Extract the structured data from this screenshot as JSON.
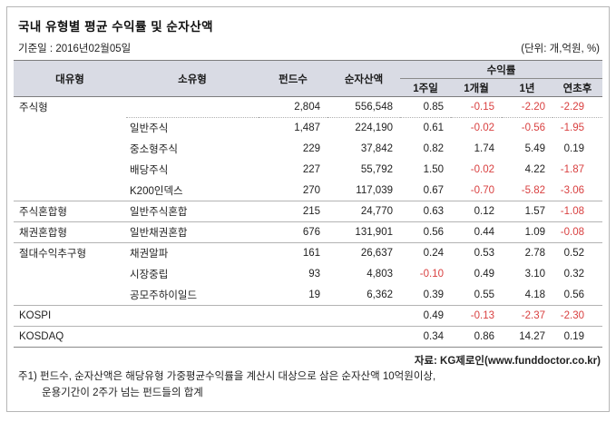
{
  "header": {
    "title": "국내 유형별 평균 수익률 및 순자산액",
    "base_date": "기준일 : 2016년02월05일",
    "unit_note": "(단위: 개,억원, %)"
  },
  "table": {
    "columns": {
      "major_type": "대유형",
      "sub_type": "소유형",
      "fund_count": "펀드수",
      "net_assets": "순자산액",
      "returns_group": "수익률",
      "returns": [
        "1주일",
        "1개월",
        "1년",
        "연초후"
      ]
    },
    "rows": [
      {
        "major": "주식형",
        "sub": "",
        "funds": "2,804",
        "assets": "556,548",
        "returns": [
          "0.85",
          "-0.15",
          "-2.20",
          "-2.29"
        ],
        "group_start": false,
        "partial_sep_bottom": true
      },
      {
        "major": "",
        "sub": "일반주식",
        "funds": "1,487",
        "assets": "224,190",
        "returns": [
          "0.61",
          "-0.02",
          "-0.56",
          "-1.95"
        ],
        "group_start": false,
        "partial_sep_bottom": false
      },
      {
        "major": "",
        "sub": "중소형주식",
        "funds": "229",
        "assets": "37,842",
        "returns": [
          "0.82",
          "1.74",
          "5.49",
          "0.19"
        ],
        "group_start": false,
        "partial_sep_bottom": false
      },
      {
        "major": "",
        "sub": "배당주식",
        "funds": "227",
        "assets": "55,792",
        "returns": [
          "1.50",
          "-0.02",
          "4.22",
          "-1.87"
        ],
        "group_start": false,
        "partial_sep_bottom": false
      },
      {
        "major": "",
        "sub": "K200인덱스",
        "funds": "270",
        "assets": "117,039",
        "returns": [
          "0.67",
          "-0.70",
          "-5.82",
          "-3.06"
        ],
        "group_start": false,
        "partial_sep_bottom": false
      },
      {
        "major": "주식혼합형",
        "sub": "일반주식혼합",
        "funds": "215",
        "assets": "24,770",
        "returns": [
          "0.63",
          "0.12",
          "1.57",
          "-1.08"
        ],
        "group_start": true,
        "partial_sep_bottom": false
      },
      {
        "major": "채권혼합형",
        "sub": "일반채권혼합",
        "funds": "676",
        "assets": "131,901",
        "returns": [
          "0.56",
          "0.44",
          "1.09",
          "-0.08"
        ],
        "group_start": true,
        "partial_sep_bottom": false
      },
      {
        "major": "절대수익추구형",
        "sub": "채권알파",
        "funds": "161",
        "assets": "26,637",
        "returns": [
          "0.24",
          "0.53",
          "2.78",
          "0.52"
        ],
        "group_start": true,
        "partial_sep_bottom": false
      },
      {
        "major": "",
        "sub": "시장중립",
        "funds": "93",
        "assets": "4,803",
        "returns": [
          "-0.10",
          "0.49",
          "3.10",
          "0.32"
        ],
        "group_start": false,
        "partial_sep_bottom": false
      },
      {
        "major": "",
        "sub": "공모주하이일드",
        "funds": "19",
        "assets": "6,362",
        "returns": [
          "0.39",
          "0.55",
          "4.18",
          "0.56"
        ],
        "group_start": false,
        "partial_sep_bottom": false
      },
      {
        "major": "KOSPI",
        "sub": "",
        "funds": "",
        "assets": "",
        "returns": [
          "0.49",
          "-0.13",
          "-2.37",
          "-2.30"
        ],
        "group_start": true,
        "partial_sep_bottom": false
      },
      {
        "major": "KOSDAQ",
        "sub": "",
        "funds": "",
        "assets": "",
        "returns": [
          "0.34",
          "0.86",
          "14.27",
          "0.19"
        ],
        "group_start": true,
        "partial_sep_bottom": false
      }
    ]
  },
  "footer": {
    "source": "자료: KG제로인(www.funddoctor.co.kr)",
    "note1": "주1) 펀드수, 순자산액은 해당유형 가중평균수익률을 계산시 대상으로 삼은 순자산액 10억원이상,",
    "note2": "운용기간이 2주가 넘는 펀드들의 합계"
  },
  "colors": {
    "negative_value": "#d94040",
    "header_background": "#d9dbe4"
  },
  "chart_data": {
    "type": "table",
    "title": "국내 유형별 평균 수익률 및 순자산액",
    "base_date_label": "기준일 : 2016년02월05일",
    "units_label": "(단위: 개,억원, %)",
    "columns": [
      "대유형",
      "소유형",
      "펀드수",
      "순자산액(억원)",
      "수익률 1주일(%)",
      "수익률 1개월(%)",
      "수익률 1년(%)",
      "수익률 연초후(%)"
    ],
    "rows": [
      [
        "주식형",
        "",
        2804,
        556548,
        0.85,
        -0.15,
        -2.2,
        -2.29
      ],
      [
        "",
        "일반주식",
        1487,
        224190,
        0.61,
        -0.02,
        -0.56,
        -1.95
      ],
      [
        "",
        "중소형주식",
        229,
        37842,
        0.82,
        1.74,
        5.49,
        0.19
      ],
      [
        "",
        "배당주식",
        227,
        55792,
        1.5,
        -0.02,
        4.22,
        -1.87
      ],
      [
        "",
        "K200인덱스",
        270,
        117039,
        0.67,
        -0.7,
        -5.82,
        -3.06
      ],
      [
        "주식혼합형",
        "일반주식혼합",
        215,
        24770,
        0.63,
        0.12,
        1.57,
        -1.08
      ],
      [
        "채권혼합형",
        "일반채권혼합",
        676,
        131901,
        0.56,
        0.44,
        1.09,
        -0.08
      ],
      [
        "절대수익추구형",
        "채권알파",
        161,
        26637,
        0.24,
        0.53,
        2.78,
        0.52
      ],
      [
        "",
        "시장중립",
        93,
        4803,
        -0.1,
        0.49,
        3.1,
        0.32
      ],
      [
        "",
        "공모주하이일드",
        19,
        6362,
        0.39,
        0.55,
        4.18,
        0.56
      ],
      [
        "KOSPI",
        "",
        null,
        null,
        0.49,
        -0.13,
        -2.37,
        -2.3
      ],
      [
        "KOSDAQ",
        "",
        null,
        null,
        0.34,
        0.86,
        14.27,
        0.19
      ]
    ]
  }
}
